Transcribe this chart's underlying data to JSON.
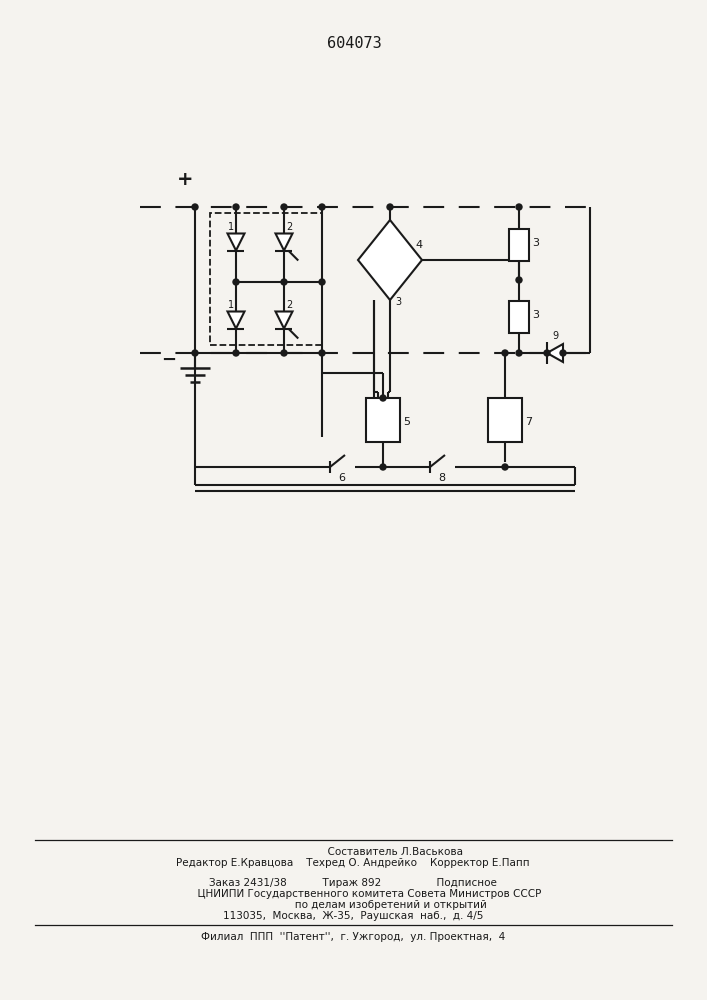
{
  "title": "604073",
  "bg_color": "#f5f3ef",
  "line_color": "#1a1a1a",
  "footer_lines": [
    [
      "                          Составитель Л.Васькова",
      353,
      148,
      "center",
      7.5
    ],
    [
      "Редактор Е.Кравцова    Техред О. Андрейко    Корректор Е.Папп",
      353,
      137,
      "center",
      7.5
    ],
    [
      "Заказ 2431/38           Тираж 892                 Подписное",
      353,
      117,
      "center",
      7.5
    ],
    [
      "          ЦНИИПИ Государственного комитета Совета Министров СССР",
      353,
      106,
      "center",
      7.5
    ],
    [
      "                       по делам изобретений и открытий",
      353,
      95,
      "center",
      7.5
    ],
    [
      "113035,  Москва,  Ж-35,  Раушская  наб.,  д. 4/5",
      353,
      84,
      "center",
      7.5
    ],
    [
      "Филиал  ППП  ''Патент'',  г. Ужгород,  ул. Проектная,  4",
      353,
      63,
      "center",
      7.5
    ]
  ]
}
